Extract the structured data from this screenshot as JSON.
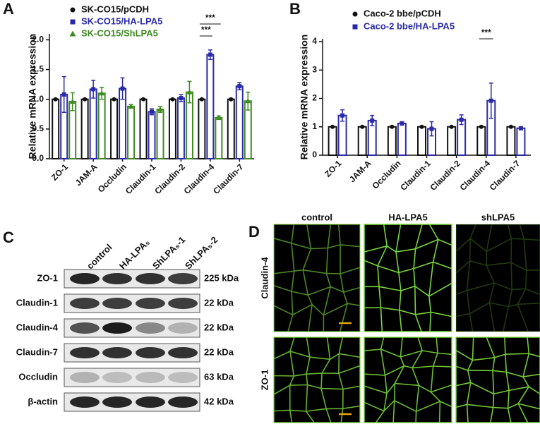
{
  "chart_data": [
    {
      "type": "bar",
      "panel_label": "A",
      "y_label": "Relative mRNA expression",
      "categories": [
        "ZO-1",
        "JAM-A",
        "Occludin",
        "Claudin-1",
        "Claudin-2",
        "Claudin-4",
        "Claudin-7"
      ],
      "series": [
        {
          "name": "SK-CO15/pCDH",
          "color": "#111111",
          "marker": "circle",
          "values": [
            1,
            1,
            1,
            1,
            1,
            1,
            1
          ],
          "errors": [
            0.01,
            0.01,
            0.01,
            0.01,
            0.01,
            0.01,
            0.01
          ]
        },
        {
          "name": "SK-CO15/HA-LPA5",
          "color": "#2a2aa8",
          "marker": "square",
          "values": [
            1.08,
            1.17,
            1.18,
            0.79,
            1.02,
            1.75,
            1.22
          ],
          "errors": [
            0.3,
            0.15,
            0.18,
            0.05,
            0.06,
            0.08,
            0.06
          ]
        },
        {
          "name": "SK-CO15/ShLPA5",
          "color": "#3f8a22",
          "marker": "triangle",
          "values": [
            0.96,
            1.1,
            0.88,
            0.83,
            1.12,
            0.69,
            0.97
          ],
          "errors": [
            0.15,
            0.1,
            0.03,
            0.05,
            0.18,
            0.03,
            0.15
          ]
        }
      ],
      "ylim": [
        0,
        2.1
      ],
      "yticks": [
        {
          "value": 0,
          "label": "0.0"
        },
        0.5,
        {
          "value": 1,
          "label": "1.0"
        },
        1.5,
        {
          "value": 2,
          "label": "2.0"
        }
      ],
      "annotations": [
        {
          "text": "***",
          "category": 5,
          "span": "pCDH-ShLPA5"
        },
        {
          "text": "***",
          "category": 5,
          "span": "pCDH-HA"
        }
      ]
    },
    {
      "type": "bar",
      "panel_label": "B",
      "y_label": "Relative mRNA expression",
      "categories": [
        "ZO-1",
        "JAM-A",
        "Occludin",
        "Claudin-1",
        "Claudin-2",
        "Claudin-4",
        "Claudin-7"
      ],
      "series": [
        {
          "name": "Caco-2 bbe/pCDH",
          "color": "#111111",
          "marker": "circle",
          "values": [
            1,
            1,
            1,
            1,
            1,
            1,
            1
          ],
          "errors": [
            0.01,
            0.01,
            0.01,
            0.01,
            0.01,
            0.01,
            0.01
          ]
        },
        {
          "name": "Caco-2 bbe/HA-LPA5",
          "color": "#2a2aa8",
          "marker": "square",
          "values": [
            1.4,
            1.22,
            1.12,
            0.93,
            1.25,
            1.92,
            0.95
          ],
          "errors": [
            0.2,
            0.18,
            0.06,
            0.25,
            0.17,
            0.62,
            0.05
          ]
        }
      ],
      "ylim": [
        0,
        4.1
      ],
      "yticks": [
        0,
        1,
        2,
        3,
        4
      ],
      "annotations": [
        {
          "text": "***",
          "category": 5,
          "span": "pCDH-HA"
        }
      ]
    }
  ],
  "blot": {
    "panel_label": "C",
    "lanes": [
      "control",
      "HA-LPA₅",
      "ShLPA₅-1",
      "ShLPA₅-2"
    ],
    "rows": [
      {
        "protein": "ZO-1",
        "size": "225 kDa"
      },
      {
        "protein": "Claudin-1",
        "size": "22 kDa"
      },
      {
        "protein": "Claudin-4",
        "size": "22 kDa"
      },
      {
        "protein": "Claudin-7",
        "size": "22 kDa"
      },
      {
        "protein": "Occludin",
        "size": "63 kDa"
      },
      {
        "protein": "β-actin",
        "size": "42 kDa"
      }
    ]
  },
  "microscopy": {
    "panel_label": "D",
    "columns": [
      "control",
      "HA-LPA5",
      "shLPA5"
    ],
    "rows": [
      "Claudin-4",
      "ZO-1"
    ]
  }
}
